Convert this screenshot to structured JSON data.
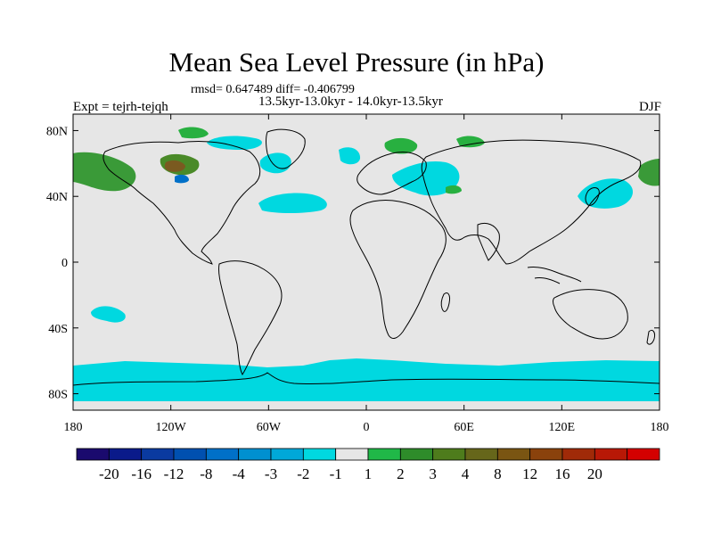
{
  "title": "Mean Sea Level Pressure (in hPa)",
  "stats": "rmsd= 0.647489 diff= -0.406799",
  "period": "13.5kyr-13.0kyr - 14.0kyr-13.5kyr",
  "experiment": "Expt = tejrh-tejqh",
  "season": "DJF",
  "colors": {
    "background_field": "#e6e6e6",
    "coastline": "#000000",
    "cyan_anomaly": "#00d8e0",
    "light_blue_anomaly": "#00a8d8",
    "blue_anomaly": "#0070c8",
    "green_anomaly": "#28b040",
    "dark_green_anomaly": "#4a8a28",
    "brown_anomaly": "#7a5a20"
  },
  "axes": {
    "lon_ticks": [
      "180",
      "120W",
      "60W",
      "0",
      "60E",
      "120E",
      "180"
    ],
    "lat_ticks": [
      "80N",
      "40N",
      "0",
      "40S",
      "80S"
    ]
  },
  "colorbar": {
    "colors": [
      "#1a0a6e",
      "#0a1a8a",
      "#0a3aa0",
      "#0050b0",
      "#0070c8",
      "#0090d0",
      "#00a8d8",
      "#00d8e0",
      "#e6e6e6",
      "#20b848",
      "#2e8c2a",
      "#4e7c1c",
      "#66661a",
      "#7a5512",
      "#8a420c",
      "#a02a08",
      "#b81806",
      "#d40000"
    ],
    "labels": [
      "-20",
      "-16",
      "-12",
      "-8",
      "-4",
      "-3",
      "-2",
      "-1",
      "1",
      "2",
      "3",
      "4",
      "8",
      "12",
      "16",
      "20"
    ]
  }
}
